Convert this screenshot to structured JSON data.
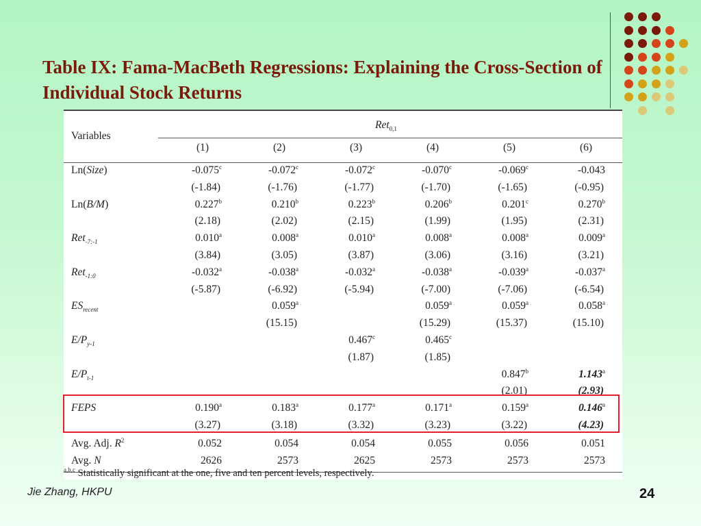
{
  "slide": {
    "title": "Table IX: Fama-MacBeth Regressions: Explaining the Cross-Section of Individual Stock Returns",
    "author": "Jie Zhang, HKPU",
    "page_number": "24",
    "footnote_marker": "a,b,c",
    "footnote": "Statistically significant at the one, five and ten percent levels, respectively.",
    "decoration_colors": [
      "#7a1a0a",
      "#d4461a",
      "#d4a21a",
      "#d9c978"
    ]
  },
  "table": {
    "header": {
      "variables_label": "Variables",
      "group_label": "Ret",
      "group_subscript": "0,1",
      "columns": [
        "(1)",
        "(2)",
        "(3)",
        "(4)",
        "(5)",
        "(6)"
      ]
    },
    "rows": [
      {
        "label": "Ln(",
        "label_italic": "Size",
        "label_tail": ")",
        "coef": [
          "-0.075",
          "-0.072",
          "-0.072",
          "-0.070",
          "-0.069",
          "-0.043"
        ],
        "sig": [
          "c",
          "c",
          "c",
          "c",
          "c",
          ""
        ],
        "tstat": [
          "(-1.84)",
          "(-1.76)",
          "(-1.77)",
          "(-1.70)",
          "(-1.65)",
          "(-0.95)"
        ],
        "bold_col6": false
      },
      {
        "label": "Ln(",
        "label_italic": "B/M",
        "label_tail": ")",
        "coef": [
          "0.227",
          "0.210",
          "0.223",
          "0.206",
          "0.201",
          "0.270"
        ],
        "sig": [
          "b",
          "b",
          "b",
          "b",
          "c",
          "b"
        ],
        "tstat": [
          "(2.18)",
          "(2.02)",
          "(2.15)",
          "(1.99)",
          "(1.95)",
          "(2.31)"
        ],
        "bold_col6": false
      },
      {
        "label": "",
        "label_italic": "Ret",
        "label_sub": "-7:-1",
        "coef": [
          "0.010",
          "0.008",
          "0.010",
          "0.008",
          "0.008",
          "0.009"
        ],
        "sig": [
          "a",
          "a",
          "a",
          "a",
          "a",
          "a"
        ],
        "tstat": [
          "(3.84)",
          "(3.05)",
          "(3.87)",
          "(3.06)",
          "(3.16)",
          "(3.21)"
        ],
        "bold_col6": false
      },
      {
        "label": "",
        "label_italic": "Ret",
        "label_sub": "-1:0",
        "coef": [
          "-0.032",
          "-0.038",
          "-0.032",
          "-0.038",
          "-0.039",
          "-0.037"
        ],
        "sig": [
          "a",
          "a",
          "a",
          "a",
          "a",
          "a"
        ],
        "tstat": [
          "(-5.87)",
          "(-6.92)",
          "(-5.94)",
          "(-7.00)",
          "(-7.06)",
          "(-6.54)"
        ],
        "bold_col6": false
      },
      {
        "label": "",
        "label_italic": "ES",
        "label_sub": "recent",
        "coef": [
          "",
          "0.059",
          "",
          "0.059",
          "0.059",
          "0.058"
        ],
        "sig": [
          "",
          "a",
          "",
          "a",
          "a",
          "a"
        ],
        "tstat": [
          "",
          "(15.15)",
          "",
          "(15.29)",
          "(15.37)",
          "(15.10)"
        ],
        "bold_col6": false
      },
      {
        "label": "",
        "label_italic": "E/P",
        "label_sub": "y-1",
        "coef": [
          "",
          "",
          "0.467",
          "0.465",
          "",
          ""
        ],
        "sig": [
          "",
          "",
          "c",
          "c",
          "",
          ""
        ],
        "tstat": [
          "",
          "",
          "(1.87)",
          "(1.85)",
          "",
          ""
        ],
        "bold_col6": false
      },
      {
        "label": "",
        "label_italic": "E/P",
        "label_sub": "t-1",
        "coef": [
          "",
          "",
          "",
          "",
          "0.847",
          "1.143"
        ],
        "sig": [
          "",
          "",
          "",
          "",
          "b",
          "a"
        ],
        "tstat": [
          "",
          "",
          "",
          "",
          "(2.01)",
          "(2.93)"
        ],
        "bold_col6": true
      },
      {
        "label": "",
        "label_italic": "FEPS",
        "label_sub": "",
        "coef": [
          "0.190",
          "0.183",
          "0.177",
          "0.171",
          "0.159",
          "0.146"
        ],
        "sig": [
          "a",
          "a",
          "a",
          "a",
          "a",
          "a"
        ],
        "tstat": [
          "(3.27)",
          "(3.18)",
          "(3.32)",
          "(3.23)",
          "(3.22)",
          "(4.23)"
        ],
        "bold_col6": true
      }
    ],
    "summary": [
      {
        "label": "Avg. Adj. ",
        "label_italic": "R",
        "label_sup": "2",
        "values": [
          "0.052",
          "0.054",
          "0.054",
          "0.055",
          "0.056",
          "0.051"
        ]
      },
      {
        "label": "Avg. ",
        "label_italic": "N",
        "label_sup": "",
        "values": [
          "2626",
          "2573",
          "2625",
          "2573",
          "2573",
          "2573"
        ]
      }
    ]
  }
}
